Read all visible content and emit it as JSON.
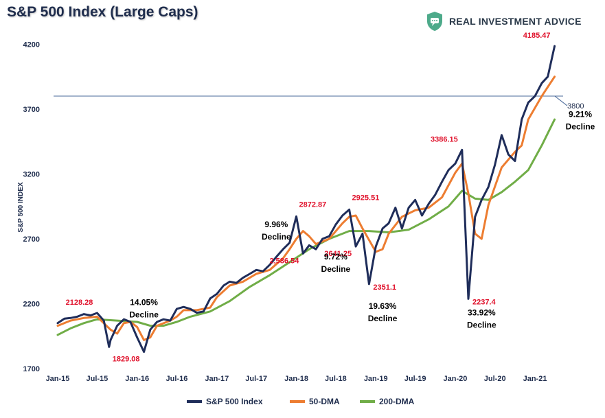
{
  "header": {
    "title": "S&P 500 Index (Large Caps)",
    "brand_name": "REAL INVESTMENT ADVICE",
    "brand_icon": "shield-chat-icon",
    "brand_color": "#4daa8a"
  },
  "chart_data": {
    "type": "line",
    "title": "S&P 500 Index (Large Caps)",
    "ylabel": "S&P 500 INDEX",
    "xlabel": "",
    "ylim": [
      1700,
      4250
    ],
    "yticks": [
      1700,
      2200,
      2700,
      3200,
      3700,
      4200
    ],
    "xticks": [
      "Jan-15",
      "Jul-15",
      "Jan-16",
      "Jul-16",
      "Jan-17",
      "Jul-17",
      "Jan-18",
      "Jul-18",
      "Jan-19",
      "Jul-19",
      "Jan-20",
      "Jul-20",
      "Jan-21"
    ],
    "x_range": [
      "2015-01",
      "2021-04"
    ],
    "grid": false,
    "legend": "bottom",
    "reference_line": {
      "value": 3800,
      "label": "3800",
      "color": "#4a6a9a"
    },
    "series": [
      {
        "name": "S&P 500 Index",
        "color": "#1f2d5a",
        "points": [
          [
            "2015-01",
            2050
          ],
          [
            "2015-02",
            2085
          ],
          [
            "2015-03",
            2090
          ],
          [
            "2015-04",
            2100
          ],
          [
            "2015-05",
            2120
          ],
          [
            "2015-06",
            2110
          ],
          [
            "2015-07",
            2128.28
          ],
          [
            "2015-08",
            2070
          ],
          [
            "2015-08-25",
            1867
          ],
          [
            "2015-09",
            1920
          ],
          [
            "2015-10",
            2030
          ],
          [
            "2015-11",
            2080
          ],
          [
            "2015-12",
            2060
          ],
          [
            "2016-01",
            1940
          ],
          [
            "2016-02",
            1829.08
          ],
          [
            "2016-03",
            2000
          ],
          [
            "2016-04",
            2060
          ],
          [
            "2016-05",
            2080
          ],
          [
            "2016-06",
            2070
          ],
          [
            "2016-07",
            2160
          ],
          [
            "2016-08",
            2175
          ],
          [
            "2016-09",
            2160
          ],
          [
            "2016-10",
            2130
          ],
          [
            "2016-11",
            2140
          ],
          [
            "2016-12",
            2240
          ],
          [
            "2017-01",
            2275
          ],
          [
            "2017-02",
            2340
          ],
          [
            "2017-03",
            2370
          ],
          [
            "2017-04",
            2360
          ],
          [
            "2017-05",
            2400
          ],
          [
            "2017-06",
            2430
          ],
          [
            "2017-07",
            2460
          ],
          [
            "2017-08",
            2450
          ],
          [
            "2017-09",
            2500
          ],
          [
            "2017-10",
            2560
          ],
          [
            "2017-11",
            2620
          ],
          [
            "2017-12",
            2670
          ],
          [
            "2018-01",
            2872.87
          ],
          [
            "2018-02",
            2586.54
          ],
          [
            "2018-03",
            2650
          ],
          [
            "2018-04",
            2620
          ],
          [
            "2018-05",
            2700
          ],
          [
            "2018-06",
            2720
          ],
          [
            "2018-07",
            2810
          ],
          [
            "2018-08",
            2880
          ],
          [
            "2018-09",
            2925.51
          ],
          [
            "2018-10",
            2641.25
          ],
          [
            "2018-11",
            2740
          ],
          [
            "2018-12",
            2351.1
          ],
          [
            "2019-01",
            2640
          ],
          [
            "2019-02",
            2780
          ],
          [
            "2019-03",
            2820
          ],
          [
            "2019-04",
            2940
          ],
          [
            "2019-05",
            2780
          ],
          [
            "2019-06",
            2940
          ],
          [
            "2019-07",
            3000
          ],
          [
            "2019-08",
            2880
          ],
          [
            "2019-09",
            2970
          ],
          [
            "2019-10",
            3040
          ],
          [
            "2019-11",
            3140
          ],
          [
            "2019-12",
            3230
          ],
          [
            "2020-01",
            3280
          ],
          [
            "2020-02",
            3386.15
          ],
          [
            "2020-03",
            2237.4
          ],
          [
            "2020-04",
            2870
          ],
          [
            "2020-05",
            3000
          ],
          [
            "2020-06",
            3100
          ],
          [
            "2020-07",
            3270
          ],
          [
            "2020-08",
            3500
          ],
          [
            "2020-09",
            3350
          ],
          [
            "2020-10",
            3300
          ],
          [
            "2020-11",
            3620
          ],
          [
            "2020-12",
            3750
          ],
          [
            "2021-01",
            3800
          ],
          [
            "2021-02",
            3900
          ],
          [
            "2021-03",
            3950
          ],
          [
            "2021-04",
            4185.47
          ]
        ]
      },
      {
        "name": "50-DMA",
        "color": "#ed7d31",
        "points": [
          [
            "2015-01",
            2030
          ],
          [
            "2015-03",
            2070
          ],
          [
            "2015-05",
            2090
          ],
          [
            "2015-07",
            2100
          ],
          [
            "2015-09",
            2000
          ],
          [
            "2015-10",
            1970
          ],
          [
            "2015-11",
            2050
          ],
          [
            "2015-12",
            2060
          ],
          [
            "2016-01",
            2020
          ],
          [
            "2016-02",
            1920
          ],
          [
            "2016-03",
            1940
          ],
          [
            "2016-04",
            2030
          ],
          [
            "2016-06",
            2070
          ],
          [
            "2016-07",
            2100
          ],
          [
            "2016-08",
            2150
          ],
          [
            "2016-10",
            2150
          ],
          [
            "2016-12",
            2170
          ],
          [
            "2017-01",
            2250
          ],
          [
            "2017-03",
            2340
          ],
          [
            "2017-05",
            2370
          ],
          [
            "2017-07",
            2430
          ],
          [
            "2017-09",
            2460
          ],
          [
            "2017-11",
            2550
          ],
          [
            "2017-12",
            2620
          ],
          [
            "2018-01",
            2700
          ],
          [
            "2018-02",
            2760
          ],
          [
            "2018-03",
            2720
          ],
          [
            "2018-04",
            2660
          ],
          [
            "2018-06",
            2700
          ],
          [
            "2018-08",
            2820
          ],
          [
            "2018-09",
            2870
          ],
          [
            "2018-10",
            2880
          ],
          [
            "2018-11",
            2780
          ],
          [
            "2019-01",
            2600
          ],
          [
            "2019-02",
            2620
          ],
          [
            "2019-03",
            2740
          ],
          [
            "2019-05",
            2870
          ],
          [
            "2019-07",
            2920
          ],
          [
            "2019-09",
            2940
          ],
          [
            "2019-11",
            3020
          ],
          [
            "2020-01",
            3210
          ],
          [
            "2020-02",
            3280
          ],
          [
            "2020-03",
            3050
          ],
          [
            "2020-04",
            2740
          ],
          [
            "2020-05",
            2700
          ],
          [
            "2020-06",
            2960
          ],
          [
            "2020-08",
            3250
          ],
          [
            "2020-10",
            3370
          ],
          [
            "2020-11",
            3420
          ],
          [
            "2020-12",
            3620
          ],
          [
            "2021-02",
            3800
          ],
          [
            "2021-04",
            3950
          ]
        ]
      },
      {
        "name": "200-DMA",
        "color": "#70ad47",
        "points": [
          [
            "2015-01",
            1960
          ],
          [
            "2015-03",
            2010
          ],
          [
            "2015-05",
            2050
          ],
          [
            "2015-07",
            2080
          ],
          [
            "2015-10",
            2070
          ],
          [
            "2016-01",
            2060
          ],
          [
            "2016-03",
            2030
          ],
          [
            "2016-05",
            2030
          ],
          [
            "2016-07",
            2060
          ],
          [
            "2016-09",
            2100
          ],
          [
            "2016-12",
            2140
          ],
          [
            "2017-03",
            2220
          ],
          [
            "2017-06",
            2330
          ],
          [
            "2017-09",
            2420
          ],
          [
            "2017-12",
            2520
          ],
          [
            "2018-03",
            2620
          ],
          [
            "2018-06",
            2700
          ],
          [
            "2018-09",
            2760
          ],
          [
            "2018-12",
            2760
          ],
          [
            "2019-03",
            2750
          ],
          [
            "2019-06",
            2770
          ],
          [
            "2019-09",
            2850
          ],
          [
            "2019-12",
            2950
          ],
          [
            "2020-02",
            3070
          ],
          [
            "2020-04",
            3010
          ],
          [
            "2020-06",
            3000
          ],
          [
            "2020-08",
            3060
          ],
          [
            "2020-10",
            3140
          ],
          [
            "2020-12",
            3230
          ],
          [
            "2021-02",
            3420
          ],
          [
            "2021-04",
            3620
          ]
        ]
      }
    ],
    "annotations": [
      {
        "text": "2128.28",
        "x": "2015-07",
        "y": 2128.28,
        "color": "#e0102a",
        "anchor": "above-left"
      },
      {
        "text": "1829.08",
        "x": "2016-02",
        "y": 1829.08,
        "color": "#e0102a",
        "anchor": "below-left"
      },
      {
        "text": "14.05%",
        "x": "2016-02",
        "y": 2190,
        "color": "#000000",
        "anchor": "text"
      },
      {
        "text": "Decline",
        "x": "2016-02",
        "y": 2190,
        "color": "#000000",
        "anchor": "text2"
      },
      {
        "text": "2872.87",
        "x": "2018-01",
        "y": 2872.87,
        "color": "#e0102a",
        "anchor": "above-right"
      },
      {
        "text": "2,586.54",
        "x": "2018-02",
        "y": 2586.54,
        "color": "#e0102a",
        "anchor": "below-left"
      },
      {
        "text": "9.96%",
        "x": "2017-10",
        "y": 2790,
        "color": "#000000",
        "anchor": "text"
      },
      {
        "text": "Decline",
        "x": "2017-10",
        "y": 2790,
        "color": "#000000",
        "anchor": "text2"
      },
      {
        "text": "2925.51",
        "x": "2018-09",
        "y": 2925.51,
        "color": "#e0102a",
        "anchor": "above-right"
      },
      {
        "text": "2641.25",
        "x": "2018-10",
        "y": 2641.25,
        "color": "#e0102a",
        "anchor": "below-left"
      },
      {
        "text": "9.72%",
        "x": "2018-07",
        "y": 2540,
        "color": "#000000",
        "anchor": "text"
      },
      {
        "text": "Decline",
        "x": "2018-07",
        "y": 2540,
        "color": "#000000",
        "anchor": "text2"
      },
      {
        "text": "2351.1",
        "x": "2018-12",
        "y": 2351.1,
        "color": "#e0102a",
        "anchor": "below-right"
      },
      {
        "text": "19.63%",
        "x": "2019-02",
        "y": 2160,
        "color": "#000000",
        "anchor": "text"
      },
      {
        "text": "Decline",
        "x": "2019-02",
        "y": 2160,
        "color": "#000000",
        "anchor": "text2"
      },
      {
        "text": "3386.15",
        "x": "2020-02",
        "y": 3386.15,
        "color": "#e0102a",
        "anchor": "above-left"
      },
      {
        "text": "2237.4",
        "x": "2020-03",
        "y": 2237.4,
        "color": "#e0102a",
        "anchor": "below-right"
      },
      {
        "text": "33.92%",
        "x": "2020-05",
        "y": 2110,
        "color": "#000000",
        "anchor": "text"
      },
      {
        "text": "Decline",
        "x": "2020-05",
        "y": 2110,
        "color": "#000000",
        "anchor": "text2"
      },
      {
        "text": "4185.47",
        "x": "2021-04",
        "y": 4185.47,
        "color": "#e0102a",
        "anchor": "above-left"
      },
      {
        "text": "9.21%",
        "x": "2021-04",
        "y": 3640,
        "color": "#000000",
        "anchor": "text"
      },
      {
        "text": "Decline",
        "x": "2021-04",
        "y": 3640,
        "color": "#000000",
        "anchor": "text2"
      }
    ]
  }
}
